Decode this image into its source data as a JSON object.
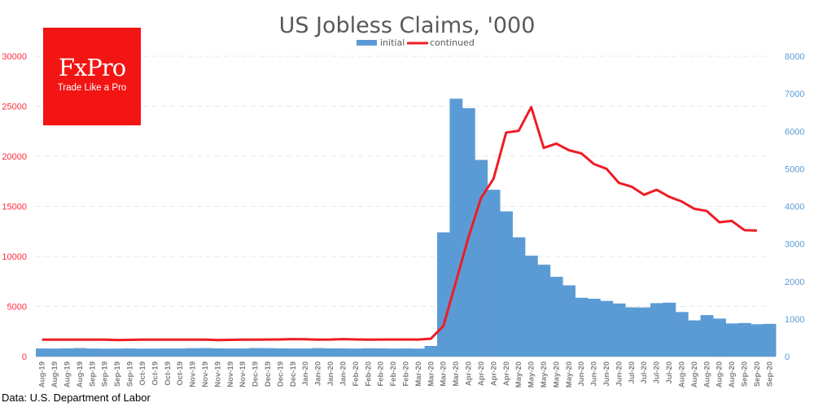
{
  "logo": {
    "brand": "FxPro",
    "tagline": "Trade Like a Pro"
  },
  "source": "Data: U.S. Department of Labor",
  "colors": {
    "initial": "#5b9bd5",
    "continued": "#ee1c25",
    "left_axis": "#ff2b3b",
    "right_axis": "#5b9bd5",
    "title": "#595959",
    "xlabel": "#808080",
    "grid": "#e8e8e8"
  },
  "chart_data": {
    "type": "bar+line",
    "title": "US Jobless Claims, '000",
    "legend": {
      "position": "top-center",
      "entries": [
        "initial",
        "continued"
      ]
    },
    "grid": true,
    "left_axis": {
      "series": "continued",
      "ylim": [
        0,
        30000
      ],
      "ticks": [
        0,
        5000,
        10000,
        15000,
        20000,
        25000,
        30000
      ]
    },
    "right_axis": {
      "series": "initial",
      "ylim": [
        0,
        8000
      ],
      "ticks": [
        0,
        1000,
        2000,
        3000,
        4000,
        5000,
        6000,
        7000,
        8000
      ]
    },
    "categories": [
      "Aug-19",
      "Aug-19",
      "Aug-19",
      "Aug-19",
      "Sep-19",
      "Sep-19",
      "Sep-19",
      "Sep-19",
      "Oct-19",
      "Oct-19",
      "Oct-19",
      "Oct-19",
      "Nov-19",
      "Nov-19",
      "Nov-19",
      "Nov-19",
      "Nov-19",
      "Dec-19",
      "Dec-19",
      "Dec-19",
      "Dec-19",
      "Jan-20",
      "Jan-20",
      "Jan-20",
      "Jan-20",
      "Feb-20",
      "Feb-20",
      "Feb-20",
      "Feb-20",
      "Feb-20",
      "Mar-20",
      "Mar-20",
      "Mar-20",
      "Mar-20",
      "Apr-20",
      "Apr-20",
      "Apr-20",
      "Apr-20",
      "May-20",
      "May-20",
      "May-20",
      "May-20",
      "May-20",
      "Jun-20",
      "Jun-20",
      "Jun-20",
      "Jun-20",
      "Jul-20",
      "Jul-20",
      "Jul-20",
      "Jul-20",
      "Aug-20",
      "Aug-20",
      "Aug-20",
      "Aug-20",
      "Aug-20",
      "Sep-20",
      "Sep-20",
      "Sep-20"
    ],
    "series": [
      {
        "name": "initial",
        "type": "bar",
        "axis": "right",
        "values": [
          215,
          212,
          216,
          225,
          213,
          210,
          212,
          215,
          210,
          212,
          214,
          215,
          222,
          225,
          218,
          215,
          214,
          225,
          223,
          218,
          215,
          214,
          224,
          217,
          216,
          213,
          220,
          216,
          213,
          215,
          211,
          282,
          3307,
          6867,
          6615,
          5237,
          4442,
          3867,
          3176,
          2687,
          2446,
          2123,
          1897,
          1566,
          1540,
          1482,
          1413,
          1310,
          1307,
          1422,
          1435,
          1186,
          963,
          1104,
          1011,
          881,
          893,
          860,
          870
        ]
      },
      {
        "name": "continued",
        "type": "line",
        "axis": "left",
        "values": [
          1690,
          1690,
          1690,
          1690,
          1690,
          1680,
          1650,
          1670,
          1690,
          1690,
          1690,
          1690,
          1690,
          1690,
          1640,
          1670,
          1680,
          1690,
          1700,
          1710,
          1740,
          1720,
          1690,
          1700,
          1740,
          1710,
          1690,
          1700,
          1700,
          1700,
          1700,
          1784,
          3059,
          7446,
          11914,
          15819,
          17756,
          22377,
          22548,
          24912,
          20838,
          21268,
          20606,
          20289,
          19231,
          18760,
          17338,
          16970,
          16151,
          16658,
          15958,
          15486,
          14759,
          14535,
          13412,
          13544,
          12628,
          12580,
          null
        ]
      }
    ]
  }
}
